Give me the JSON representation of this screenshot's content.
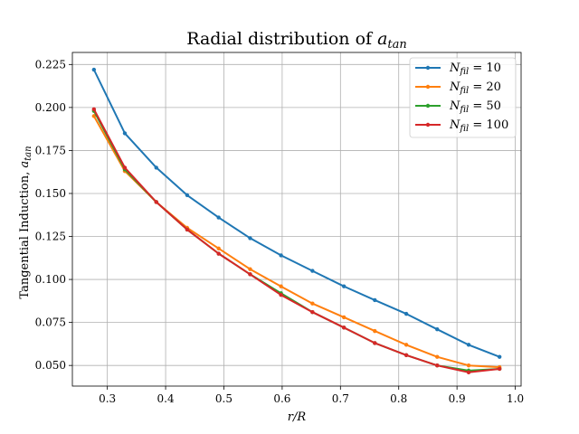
{
  "chart_data": {
    "type": "line",
    "title": "Radial distribution of a_tan",
    "xlabel": "r/R",
    "ylabel": "Tangential Induction, a_tan",
    "xlim": [
      0.24,
      1.01
    ],
    "ylim": [
      0.038,
      0.232
    ],
    "xticks": [
      "0.3",
      "0.4",
      "0.5",
      "0.6",
      "0.7",
      "0.8",
      "0.9",
      "1.0"
    ],
    "yticks": [
      "0.050",
      "0.075",
      "0.100",
      "0.125",
      "0.150",
      "0.175",
      "0.200",
      "0.225"
    ],
    "grid": true,
    "legend_position": "top-right",
    "x": [
      0.277,
      0.33,
      0.384,
      0.437,
      0.491,
      0.545,
      0.598,
      0.652,
      0.706,
      0.759,
      0.813,
      0.866,
      0.92,
      0.973
    ],
    "series": [
      {
        "name": "N_fil = 10",
        "color": "#1f77b4",
        "values": [
          0.222,
          0.185,
          0.165,
          0.149,
          0.136,
          0.124,
          0.114,
          0.105,
          0.096,
          0.088,
          0.08,
          0.071,
          0.062,
          0.055
        ]
      },
      {
        "name": "N_fil = 20",
        "color": "#ff7f0e",
        "values": [
          0.195,
          0.163,
          0.145,
          0.13,
          0.118,
          0.106,
          0.096,
          0.086,
          0.078,
          0.07,
          0.062,
          0.055,
          0.05,
          0.049
        ]
      },
      {
        "name": "N_fil = 50",
        "color": "#2ca02c",
        "values": [
          0.198,
          0.164,
          0.145,
          0.129,
          0.115,
          0.103,
          0.092,
          0.081,
          0.072,
          0.063,
          0.056,
          0.05,
          0.047,
          0.048
        ]
      },
      {
        "name": "N_fil = 100",
        "color": "#d62728",
        "values": [
          0.199,
          0.165,
          0.145,
          0.129,
          0.115,
          0.103,
          0.091,
          0.081,
          0.072,
          0.063,
          0.056,
          0.05,
          0.046,
          0.048
        ]
      }
    ],
    "legend": [
      {
        "symbol": "N",
        "sub": "fil",
        "value": "= 10"
      },
      {
        "symbol": "N",
        "sub": "fil",
        "value": "= 20"
      },
      {
        "symbol": "N",
        "sub": "fil",
        "value": "= 50"
      },
      {
        "symbol": "N",
        "sub": "fil",
        "value": "= 100"
      }
    ],
    "title_parts": {
      "text": "Radial distribution of ",
      "symbol": "a",
      "sub": "tan"
    },
    "ylabel_parts": {
      "text": "Tangential Induction, ",
      "symbol": "a",
      "sub": "tan"
    },
    "xlabel_parts": {
      "symbol": "r/R"
    }
  }
}
